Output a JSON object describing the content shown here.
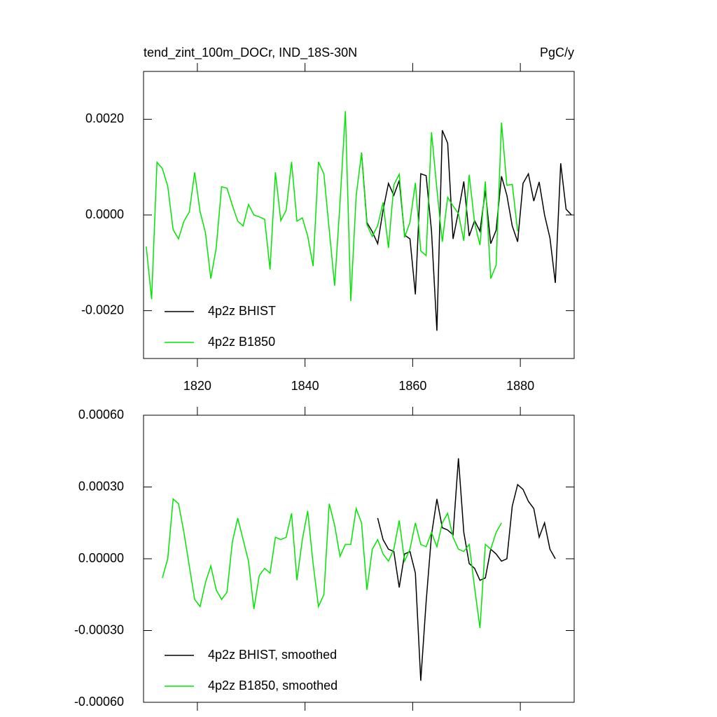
{
  "chart_data": [
    {
      "type": "line",
      "title": "tend_zint_100m_DOCr, IND_18S-30N",
      "units": "PgC/y",
      "xlim": [
        1810,
        1890
      ],
      "xticks": [
        1820,
        1840,
        1860,
        1880
      ],
      "show_xtick_labels": true,
      "ylim": [
        -0.003,
        0.003
      ],
      "yticks": [
        {
          "value": -0.002,
          "label": "-0.0020"
        },
        {
          "value": 0,
          "label": "0.0000"
        },
        {
          "value": 0.002,
          "label": "0.0020"
        }
      ],
      "legend": "lower left",
      "series": [
        {
          "name": "4p2z BHIST",
          "color": "#000000",
          "x": [
            1850.5,
            1851.5,
            1852.5,
            1853.5,
            1854.5,
            1855.5,
            1856.5,
            1857.5,
            1858.5,
            1859.5,
            1860.5,
            1861.5,
            1862.5,
            1863.5,
            1864.5,
            1865.5,
            1866.5,
            1867.5,
            1868.5,
            1869.5,
            1870.5,
            1871.5,
            1872.5,
            1873.5,
            1874.5,
            1875.5,
            1876.5,
            1877.5,
            1878.5,
            1879.5,
            1880.5,
            1881.5,
            1882.5,
            1883.5,
            1884.5,
            1885.5,
            1886.5,
            1887.5,
            1888.5,
            1889.5
          ],
          "values": [
            0.0013,
            -0.00016,
            -0.00035,
            -0.0006,
            0.0001,
            0.00066,
            0.00041,
            0.00072,
            -0.00042,
            -0.0005,
            -0.00166,
            0.00086,
            0.00082,
            -0.00034,
            -0.00242,
            0.00177,
            0.0015,
            -0.0005,
            7e-05,
            0.0007,
            -0.00044,
            -0.00012,
            -0.00034,
            0.00051,
            -0.0006,
            -0.00032,
            0.00081,
            0.00041,
            -0.00023,
            -0.00056,
            0.00066,
            0.00086,
            0.00029,
            0.00069,
            0,
            -0.00048,
            -0.00142,
            0.00108,
            0.00012,
            0
          ]
        },
        {
          "name": "4p2z B1850",
          "color": "#00e600",
          "x": [
            1810.5,
            1811.5,
            1812.5,
            1813.5,
            1814.5,
            1815.5,
            1816.5,
            1817.5,
            1818.5,
            1819.5,
            1820.5,
            1821.5,
            1822.5,
            1823.5,
            1824.5,
            1825.5,
            1826.5,
            1827.5,
            1828.5,
            1829.5,
            1830.5,
            1831.5,
            1832.5,
            1833.5,
            1834.5,
            1835.5,
            1836.5,
            1837.5,
            1838.5,
            1839.5,
            1840.5,
            1841.5,
            1842.5,
            1843.5,
            1844.5,
            1845.5,
            1846.5,
            1847.5,
            1848.5,
            1849.5,
            1850.5,
            1851.5,
            1852.5,
            1853.5,
            1854.5,
            1855.5,
            1856.5,
            1857.5,
            1858.5,
            1859.5,
            1860.5,
            1861.5,
            1862.5,
            1863.5,
            1864.5,
            1865.5,
            1866.5,
            1867.5,
            1868.5,
            1869.5,
            1870.5,
            1871.5,
            1872.5,
            1873.5,
            1874.5,
            1875.5,
            1876.5,
            1877.5,
            1878.5,
            1879.5
          ],
          "values": [
            -0.00066,
            -0.00176,
            0.0011,
            0.00097,
            0.0006,
            -0.00031,
            -0.0005,
            -0.00013,
            6e-05,
            0.00089,
            7e-05,
            -0.00037,
            -0.00133,
            -0.00069,
            0.00059,
            0.00056,
            0.0002,
            -0.00013,
            -0.00023,
            0.00022,
            0,
            -4e-05,
            -9e-05,
            -0.00114,
            0.00089,
            -0.00012,
            0.0001,
            0.00111,
            -0.00013,
            -6e-05,
            -0.00044,
            -0.00107,
            0.00111,
            0.00086,
            -0.00031,
            -0.00148,
            0.00025,
            0.00217,
            -0.0018,
            0.0004,
            0.00129,
            -0.0002,
            -0.00045,
            -0.00022,
            0.00026,
            -0.00069,
            0.00063,
            0.00085,
            -0.00047,
            -0.00015,
            0.00067,
            -0.00075,
            -0.00085,
            0.00173,
            0.00054,
            -0.00056,
            0.00037,
            0.00019,
            3e-05,
            -0.00054,
            0.00084,
            -0.00016,
            -0.00063,
            0.0007,
            -0.00133,
            -0.00105,
            0.00193,
            0.00062,
            0.00064,
            -0.00034
          ]
        }
      ]
    },
    {
      "type": "line",
      "xlim": [
        1810,
        1890
      ],
      "xticks": [
        1820,
        1840,
        1860,
        1880
      ],
      "show_xtick_labels": false,
      "ylim": [
        -0.0006,
        0.0006
      ],
      "yticks": [
        {
          "value": -0.0006,
          "label": "-0.00060"
        },
        {
          "value": -0.0003,
          "label": "-0.00030"
        },
        {
          "value": 0,
          "label": "0.00000"
        },
        {
          "value": 0.0003,
          "label": "0.00030"
        },
        {
          "value": 0.0006,
          "label": "0.00060"
        }
      ],
      "legend": "lower left",
      "series": [
        {
          "name": "4p2z BHIST, smoothed",
          "color": "#000000",
          "x": [
            1853.5,
            1854.5,
            1855.5,
            1856.5,
            1857.5,
            1858.5,
            1859.5,
            1860.5,
            1861.5,
            1862.5,
            1863.5,
            1864.5,
            1865.5,
            1866.5,
            1867.5,
            1868.5,
            1869.5,
            1870.5,
            1871.5,
            1872.5,
            1873.5,
            1874.5,
            1875.5,
            1876.5,
            1877.5,
            1878.5,
            1879.5,
            1880.5,
            1881.5,
            1882.5,
            1883.5,
            1884.5,
            1885.5,
            1886.5
          ],
          "values": [
            0.00017,
            8e-05,
            4e-05,
            3e-05,
            -0.00012,
            2e-05,
            3e-05,
            -6e-05,
            -0.00051,
            -0.00018,
            0.0001,
            0.00025,
            0.00013,
            0.00012,
            0.0001,
            0.00042,
            0.00011,
            -2e-05,
            -4e-05,
            -9e-05,
            -8e-05,
            4e-05,
            2e-05,
            -1e-05,
            0,
            0.00022,
            0.00031,
            0.00029,
            0.00024,
            0.00021,
            9e-05,
            0.00015,
            4e-05,
            0
          ]
        },
        {
          "name": "4p2z B1850, smoothed",
          "color": "#00e600",
          "x": [
            1813.5,
            1814.5,
            1815.5,
            1816.5,
            1817.5,
            1818.5,
            1819.5,
            1820.5,
            1821.5,
            1822.5,
            1823.5,
            1824.5,
            1825.5,
            1826.5,
            1827.5,
            1828.5,
            1829.5,
            1830.5,
            1831.5,
            1832.5,
            1833.5,
            1834.5,
            1835.5,
            1836.5,
            1837.5,
            1838.5,
            1839.5,
            1840.5,
            1841.5,
            1842.5,
            1843.5,
            1844.5,
            1845.5,
            1846.5,
            1847.5,
            1848.5,
            1849.5,
            1850.5,
            1851.5,
            1852.5,
            1853.5,
            1854.5,
            1855.5,
            1856.5,
            1857.5,
            1858.5,
            1859.5,
            1860.5,
            1861.5,
            1862.5,
            1863.5,
            1864.5,
            1865.5,
            1866.5,
            1867.5,
            1868.5,
            1869.5,
            1870.5,
            1871.5,
            1872.5,
            1873.5,
            1874.5,
            1875.5,
            1876.5
          ],
          "values": [
            -8e-05,
            0,
            0.00025,
            0.00023,
            0.00011,
            -3e-05,
            -0.00017,
            -0.0002,
            -0.0001,
            -3e-05,
            -0.00013,
            -0.00017,
            -0.00014,
            7e-05,
            0.00017,
            8e-05,
            -1e-05,
            -0.00021,
            -7e-05,
            -4e-05,
            -6e-05,
            9e-05,
            8e-05,
            9e-05,
            0.00019,
            -9e-05,
            8e-05,
            0.0002,
            -2e-05,
            -0.0002,
            -0.00015,
            0.00023,
            0.00014,
            1e-05,
            6e-05,
            6e-05,
            0.00021,
            0.00015,
            -0.00013,
            4e-05,
            8e-05,
            2e-05,
            -1e-05,
            4e-05,
            0.00016,
            -1e-05,
            4e-05,
            0.00015,
            6e-05,
            5e-05,
            0.00011,
            5e-05,
            0.00015,
            0.00019,
            9e-05,
            4e-05,
            3e-05,
            6e-05,
            -0.00012,
            -0.00029,
            6e-05,
            4e-05,
            0.00011,
            0.00015
          ]
        }
      ]
    }
  ]
}
